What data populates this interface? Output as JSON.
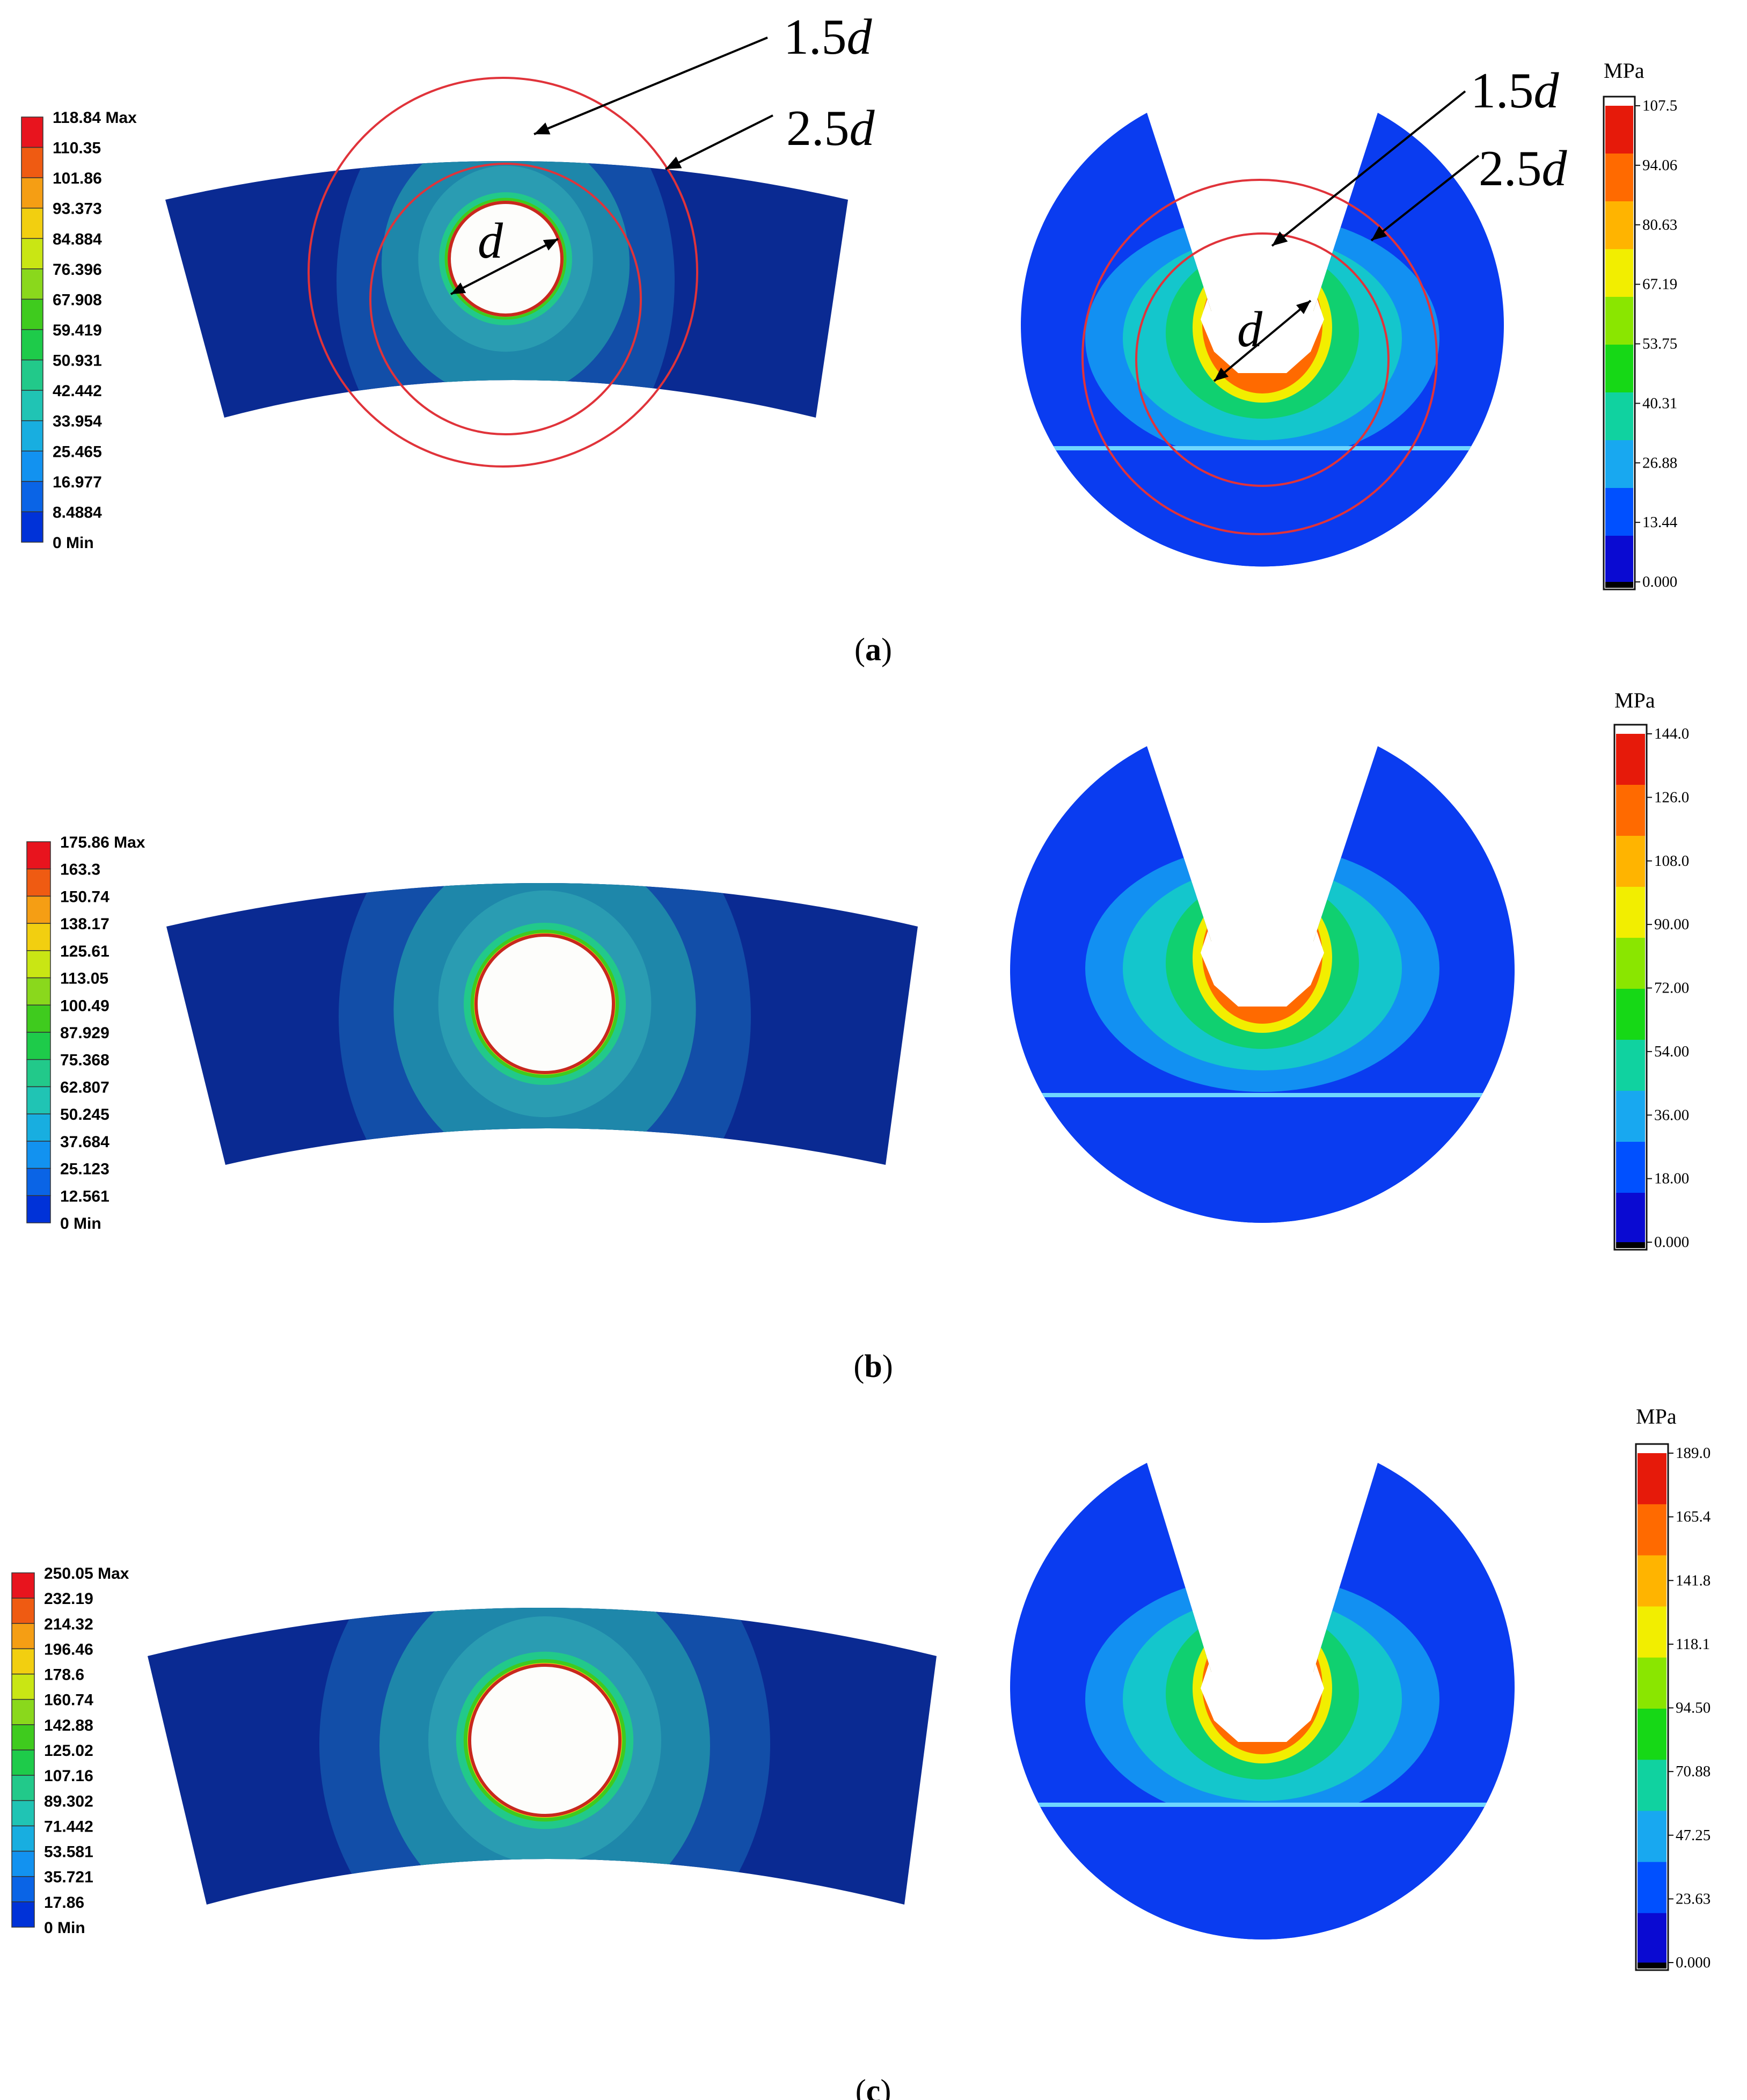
{
  "panels": [
    {
      "caption_letter": "a",
      "fem_legend": [
        "118.84 Max",
        "110.35",
        "101.86",
        "93.373",
        "84.884",
        "76.396",
        "67.908",
        "59.419",
        "50.931",
        "42.442",
        "33.954",
        "25.465",
        "16.977",
        "8.4884",
        "0 Min"
      ],
      "test_unit": "MPa",
      "test_legend": [
        "107.5",
        "94.06",
        "80.63",
        "67.19",
        "53.75",
        "40.31",
        "26.88",
        "13.44",
        "0.000"
      ],
      "annotations": {
        "inner_ring": "1.5",
        "outer_ring": "2.5",
        "diameter": "d"
      }
    },
    {
      "caption_letter": "b",
      "fem_legend": [
        "175.86 Max",
        "163.3",
        "150.74",
        "138.17",
        "125.61",
        "113.05",
        "100.49",
        "87.929",
        "75.368",
        "62.807",
        "50.245",
        "37.684",
        "25.123",
        "12.561",
        "0 Min"
      ],
      "test_unit": "MPa",
      "test_legend": [
        "144.0",
        "126.0",
        "108.0",
        "90.00",
        "72.00",
        "54.00",
        "36.00",
        "18.00",
        "0.000"
      ]
    },
    {
      "caption_letter": "c",
      "fem_legend": [
        "250.05 Max",
        "232.19",
        "214.32",
        "196.46",
        "178.6",
        "160.74",
        "142.88",
        "125.02",
        "107.16",
        "89.302",
        "71.442",
        "53.581",
        "35.721",
        "17.86",
        "0 Min"
      ],
      "test_unit": "MPa",
      "test_legend": [
        "189.0",
        "165.4",
        "141.8",
        "118.1",
        "94.50",
        "70.88",
        "47.25",
        "23.63",
        "0.000"
      ]
    }
  ],
  "colors": {
    "ansys_scale": [
      "#e8141e",
      "#ef5b12",
      "#f59e14",
      "#f2cf10",
      "#c9e614",
      "#8ad81c",
      "#3fcb1e",
      "#1ecb4a",
      "#22c98a",
      "#20c4b4",
      "#18aee0",
      "#1292f0",
      "#0a64e6",
      "#0032d8",
      "#0000f2"
    ],
    "contour_scale": [
      "#e61a0a",
      "#ff6a00",
      "#ffb400",
      "#f2ee00",
      "#8ae600",
      "#16d816",
      "#10d2a0",
      "#18a8f0",
      "#0050ff",
      "#0a0ad2"
    ],
    "dark_blue": "#0a2a92",
    "mid_blue": "#124ea8",
    "teal": "#1e87aa",
    "light_teal": "#2a9cb2",
    "ring": "#e0333a",
    "hole": "#fdfdfb"
  }
}
